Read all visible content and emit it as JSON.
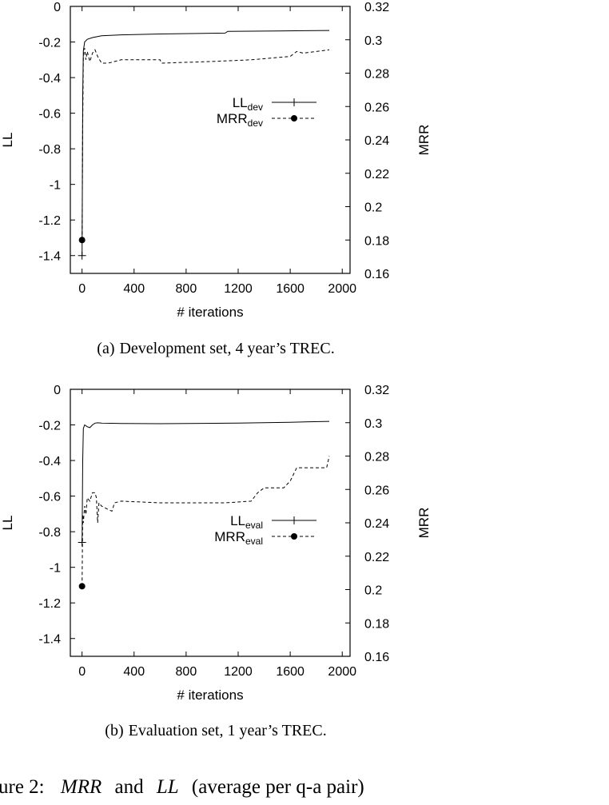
{
  "chart_data": [
    {
      "type": "line",
      "xlabel": "# iterations",
      "ylabel": "LL",
      "y2label": "MRR",
      "xlim": [
        -90,
        2060
      ],
      "ylim": [
        -1.5,
        0
      ],
      "y2lim": [
        0.16,
        0.32
      ],
      "xticks": [
        0,
        400,
        800,
        1200,
        1600,
        2000
      ],
      "yticks": [
        0,
        -0.2,
        -0.4,
        -0.6,
        -0.8,
        -1,
        -1.2,
        -1.4
      ],
      "y2ticks": [
        0.16,
        0.18,
        0.2,
        0.22,
        0.24,
        0.26,
        0.28,
        0.3,
        0.32
      ],
      "legend_position": "middle-right",
      "series": [
        {
          "name": "LL",
          "name_sub": "dev",
          "axis": "left",
          "style": "solid",
          "marker": "plus",
          "x": [
            0,
            5,
            10,
            20,
            40,
            80,
            150,
            300,
            600,
            1100,
            1120,
            1500,
            1900
          ],
          "y": [
            -1.4,
            -0.5,
            -0.25,
            -0.2,
            -0.185,
            -0.175,
            -0.165,
            -0.16,
            -0.155,
            -0.15,
            -0.14,
            -0.138,
            -0.135
          ]
        },
        {
          "name": "MRR",
          "name_sub": "dev",
          "axis": "right",
          "style": "dashed",
          "marker": "dot",
          "x": [
            0,
            5,
            10,
            20,
            30,
            40,
            60,
            80,
            100,
            120,
            150,
            200,
            300,
            600,
            610,
            1000,
            1300,
            1600,
            1650,
            1700,
            1900
          ],
          "y": [
            0.18,
            0.25,
            0.29,
            0.295,
            0.288,
            0.293,
            0.287,
            0.292,
            0.294,
            0.29,
            0.286,
            0.286,
            0.288,
            0.288,
            0.286,
            0.287,
            0.288,
            0.29,
            0.293,
            0.292,
            0.294
          ]
        }
      ],
      "caption": {
        "label": "(a)",
        "text": "Development set, 4 year’s TREC."
      }
    },
    {
      "type": "line",
      "xlabel": "# iterations",
      "ylabel": "LL",
      "y2label": "MRR",
      "xlim": [
        -90,
        2060
      ],
      "ylim": [
        -1.5,
        0
      ],
      "y2lim": [
        0.16,
        0.32
      ],
      "xticks": [
        0,
        400,
        800,
        1200,
        1600,
        2000
      ],
      "yticks": [
        0,
        -0.2,
        -0.4,
        -0.6,
        -0.8,
        -1,
        -1.2,
        -1.4
      ],
      "y2ticks": [
        0.16,
        0.18,
        0.2,
        0.22,
        0.24,
        0.26,
        0.28,
        0.3,
        0.32
      ],
      "legend_position": "middle-right",
      "series": [
        {
          "name": "LL",
          "name_sub": "eval",
          "axis": "left",
          "style": "solid",
          "marker": "plus",
          "x": [
            0,
            5,
            10,
            20,
            40,
            60,
            80,
            100,
            120,
            150,
            300,
            600,
            1200,
            1600,
            1900
          ],
          "y": [
            -0.86,
            -0.4,
            -0.22,
            -0.2,
            -0.21,
            -0.215,
            -0.2,
            -0.19,
            -0.188,
            -0.19,
            -0.192,
            -0.193,
            -0.19,
            -0.185,
            -0.18
          ]
        },
        {
          "name": "MRR",
          "name_sub": "eval",
          "axis": "right",
          "style": "dashed",
          "marker": "dot",
          "x": [
            0,
            5,
            10,
            20,
            30,
            40,
            60,
            80,
            100,
            110,
            120,
            130,
            150,
            200,
            230,
            250,
            300,
            600,
            800,
            1100,
            1300,
            1350,
            1400,
            1550,
            1600,
            1650,
            1880,
            1900
          ],
          "y": [
            0.202,
            0.245,
            0.24,
            0.25,
            0.245,
            0.255,
            0.253,
            0.258,
            0.258,
            0.255,
            0.24,
            0.252,
            0.25,
            0.248,
            0.247,
            0.252,
            0.253,
            0.252,
            0.252,
            0.252,
            0.253,
            0.258,
            0.261,
            0.261,
            0.265,
            0.273,
            0.273,
            0.28
          ]
        }
      ],
      "caption": {
        "label": "(b)",
        "text": "Evaluation set, 1 year’s TREC."
      }
    }
  ],
  "figure_caption": {
    "prefix": "ure 2:",
    "term1": "MRR",
    "mid": "and",
    "term2": "LL",
    "suffix": "(average per q-a pair)"
  }
}
